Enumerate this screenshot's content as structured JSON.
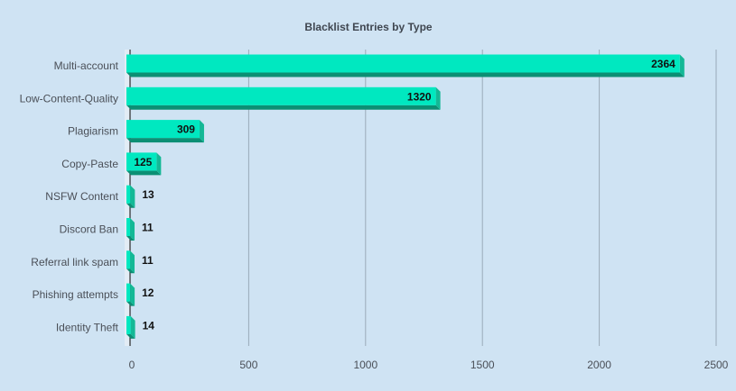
{
  "chart_data": {
    "type": "bar",
    "orientation": "horizontal",
    "title": "Blacklist Entries by Type",
    "xlabel": "",
    "ylabel": "",
    "categories": [
      "Multi-account",
      "Low-Content-Quality",
      "Plagiarism",
      "Copy-Paste",
      "NSFW Content",
      "Discord Ban",
      "Referral link spam",
      "Phishing attempts",
      "Identity Theft"
    ],
    "values": [
      2364,
      1320,
      309,
      125,
      13,
      11,
      11,
      12,
      14
    ],
    "xlim": [
      0,
      2500
    ],
    "xticks": [
      0,
      500,
      1000,
      1500,
      2000,
      2500
    ],
    "grid": true,
    "legend": "none",
    "bar_style": "3d",
    "colors": {
      "background": "#cfe3f3",
      "bar_face": "#00e8c0",
      "bar_side": "#14b896",
      "bar_bottom": "#0b8f74",
      "gridline": "#9aaab8",
      "axis": "#2b2b2b"
    }
  }
}
